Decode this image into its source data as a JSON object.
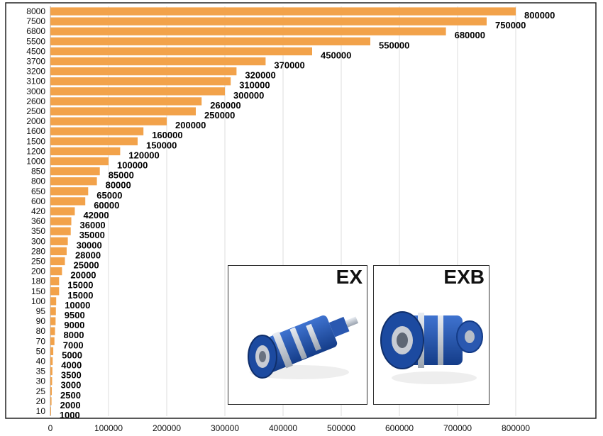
{
  "chart_data": {
    "type": "bar",
    "orientation": "horizontal",
    "categories": [
      "8000",
      "7500",
      "6800",
      "5500",
      "4500",
      "3700",
      "3200",
      "3100",
      "3000",
      "2600",
      "2500",
      "2000",
      "1600",
      "1500",
      "1200",
      "1000",
      "850",
      "800",
      "650",
      "600",
      "420",
      "360",
      "350",
      "300",
      "280",
      "250",
      "200",
      "180",
      "150",
      "100",
      "95",
      "90",
      "80",
      "70",
      "50",
      "40",
      "35",
      "30",
      "25",
      "20",
      "10"
    ],
    "values": [
      800000,
      750000,
      680000,
      550000,
      450000,
      370000,
      320000,
      310000,
      300000,
      260000,
      250000,
      200000,
      160000,
      150000,
      120000,
      100000,
      85000,
      80000,
      65000,
      60000,
      42000,
      36000,
      35000,
      30000,
      28000,
      25000,
      20000,
      15000,
      15000,
      10000,
      9500,
      9000,
      8000,
      7000,
      5000,
      4000,
      3500,
      3000,
      2500,
      2000,
      1000
    ],
    "value_labels": [
      "800000",
      "750000",
      "680000",
      "550000",
      "450000",
      "370000",
      "320000",
      "310000",
      "300000",
      "260000",
      "250000",
      "200000",
      "160000",
      "150000",
      "120000",
      "100000",
      "85000",
      "80000",
      "65000",
      "60000",
      "42000",
      "36000",
      "35000",
      "30000",
      "28000",
      "25000",
      "20000",
      "15000",
      "15000",
      "10000",
      "9500",
      "9000",
      "8000",
      "7000",
      "5000",
      "4000",
      "3500",
      "3000",
      "2500",
      "2000",
      "1000"
    ],
    "x_ticks": [
      "0",
      "100000",
      "200000",
      "300000",
      "400000",
      "500000",
      "600000",
      "700000",
      "800000"
    ],
    "xlim": [
      0,
      800000
    ],
    "title": "",
    "xlabel": "",
    "ylabel": "",
    "grid": "vertical",
    "legend": "none",
    "bar_color": "#F2A24A",
    "grid_color": "#DDDDDD"
  },
  "insets": [
    {
      "label": "EX",
      "body_color": "#1E4FA8"
    },
    {
      "label": "EXB",
      "body_color": "#1E4FA8"
    }
  ]
}
